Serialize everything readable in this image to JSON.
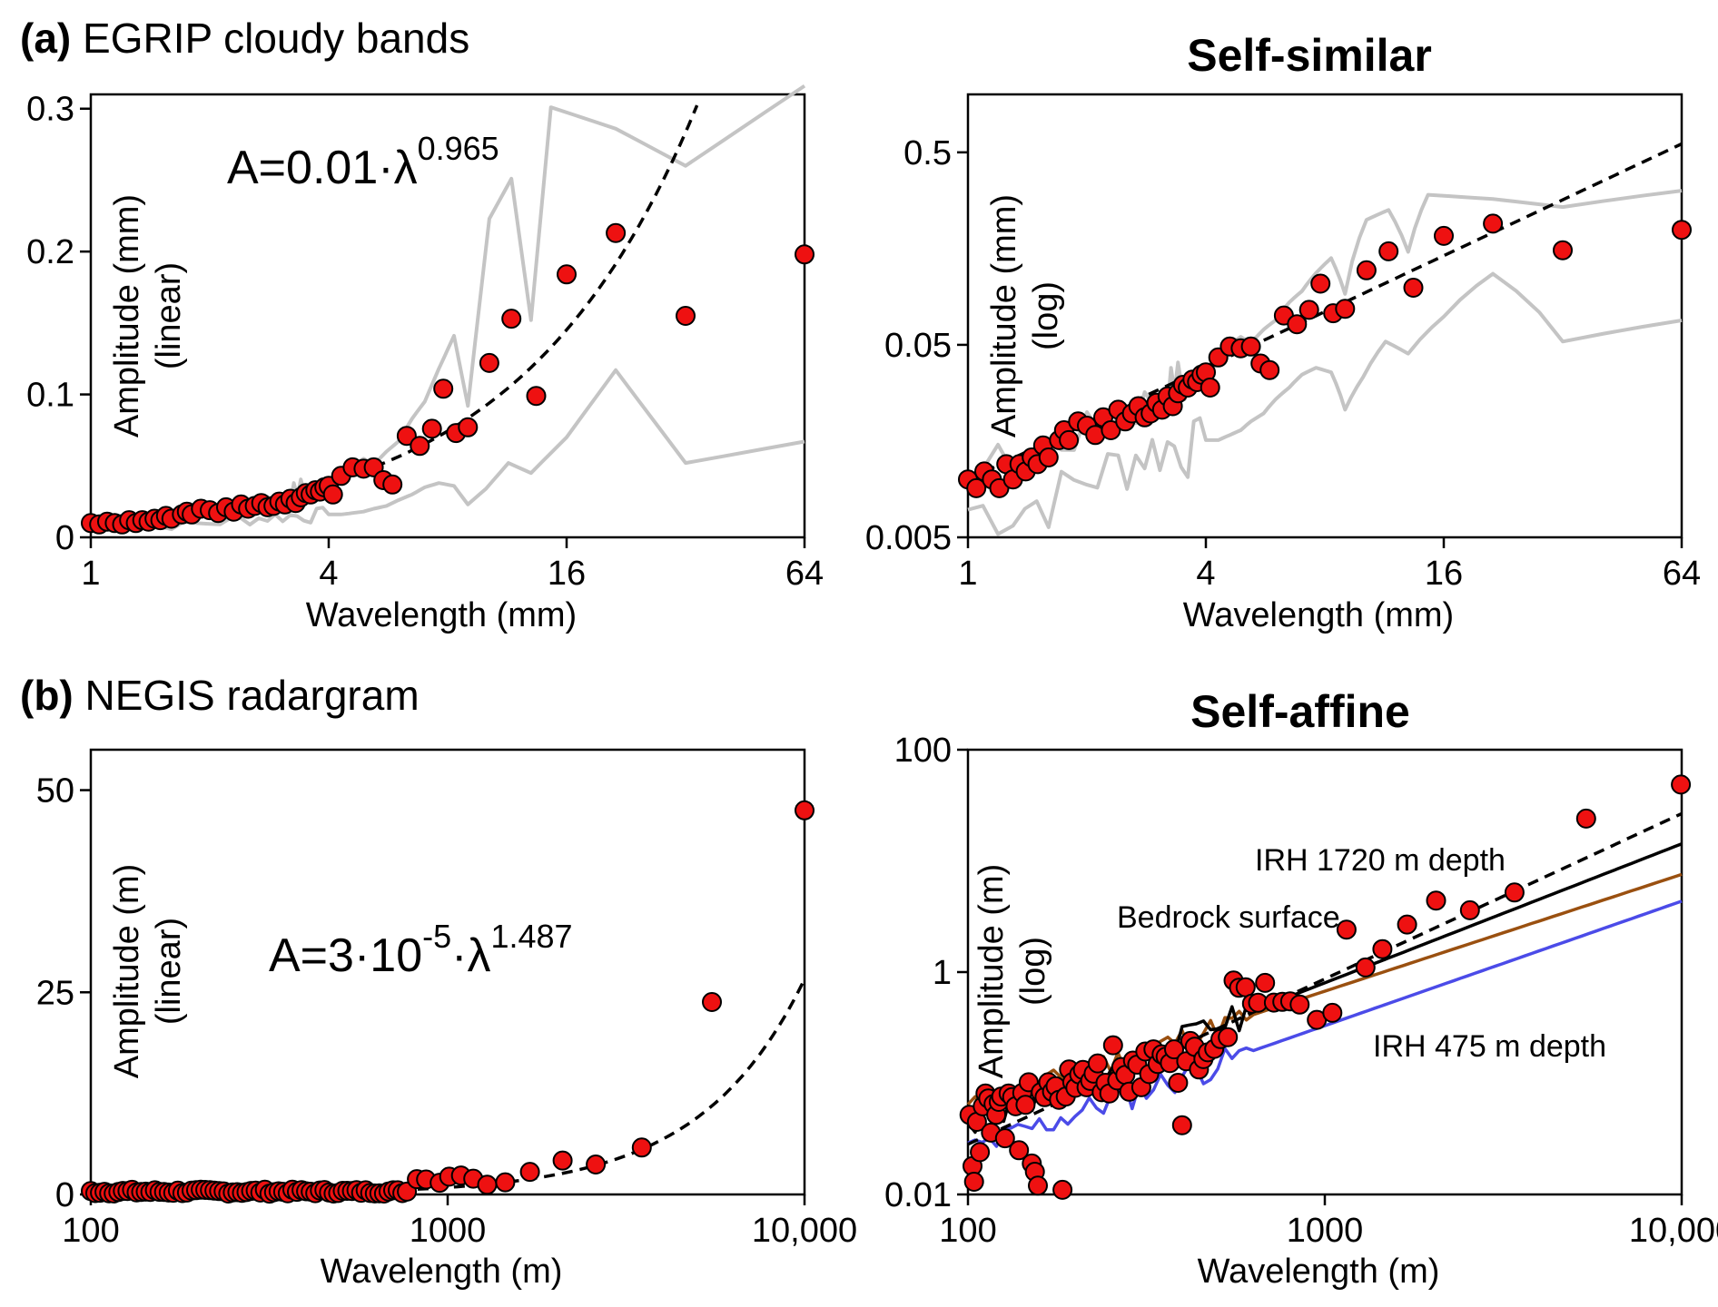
{
  "panel_labels": {
    "a_letter": "(a)",
    "a_text": "EGRIP cloudy bands",
    "b_letter": "(b)",
    "b_text": "NEGIS radargram"
  },
  "column_titles": {
    "top": "Self-similar",
    "bottom": "Self-affine"
  },
  "colors": {
    "marker_fill": "#ee1111",
    "marker_edge": "#000000",
    "envelope": "#c4c4c4",
    "fit": "#000000",
    "bedrock": "#9a5010",
    "irh475": "#4b4be8",
    "irh1720": "#000000"
  },
  "chart_data": [
    {
      "id": "a_linear",
      "type": "scatter",
      "xlabel": "Wavelength (mm)",
      "ylabel_line1": "Amplitude (mm)",
      "ylabel_line2": "(linear)",
      "xscale": "log2",
      "xlim": [
        1,
        64
      ],
      "ylim": [
        0,
        0.31
      ],
      "xticks": [
        {
          "v": 1,
          "label": "1"
        },
        {
          "v": 4,
          "label": "4"
        },
        {
          "v": 16,
          "label": "16"
        },
        {
          "v": 64,
          "label": "64"
        }
      ],
      "yticks": [
        {
          "v": 0,
          "label": "0"
        },
        {
          "v": 0.1,
          "label": "0.1"
        },
        {
          "v": 0.2,
          "label": "0.2"
        },
        {
          "v": 0.3,
          "label": "0.3"
        }
      ],
      "equation": {
        "base": "A=0.01·λ",
        "exp": "0.965"
      },
      "fit": {
        "a": 0.01,
        "b": 0.965,
        "xmax": 48
      }
    },
    {
      "id": "a_log",
      "type": "scatter",
      "xlabel": "Wavelength (mm)",
      "ylabel_line1": "Amplitude (mm)",
      "ylabel_line2": "(log)",
      "xscale": "log2",
      "yscale": "log",
      "xlim": [
        1,
        64
      ],
      "ylim": [
        0.005,
        1.0
      ],
      "xticks": [
        {
          "v": 1,
          "label": "1"
        },
        {
          "v": 4,
          "label": "4"
        },
        {
          "v": 16,
          "label": "16"
        },
        {
          "v": 64,
          "label": "64"
        }
      ],
      "yticks": [
        {
          "v": 0.005,
          "label": "0.005"
        },
        {
          "v": 0.05,
          "label": "0.05"
        },
        {
          "v": 0.5,
          "label": "0.5"
        }
      ],
      "fit": {
        "a": 0.01,
        "b": 0.965,
        "xmax": 64
      }
    },
    {
      "id": "b_linear",
      "type": "scatter",
      "xlabel": "Wavelength (m)",
      "ylabel_line1": "Amplitude (m)",
      "ylabel_line2": "(linear)",
      "xscale": "log10",
      "xlim": [
        100,
        10000
      ],
      "ylim": [
        0,
        55
      ],
      "xticks": [
        {
          "v": 100,
          "label": "100"
        },
        {
          "v": 1000,
          "label": "1000"
        },
        {
          "v": 10000,
          "label": "10,000"
        }
      ],
      "yticks": [
        {
          "v": 0,
          "label": "0"
        },
        {
          "v": 25,
          "label": "25"
        },
        {
          "v": 50,
          "label": "50"
        }
      ],
      "equation": {
        "base1": "A=3·10",
        "exp1": "-5",
        "base2": "·λ",
        "exp2": "1.487"
      },
      "fit": {
        "a": 3e-05,
        "b": 1.487,
        "xmax": 10000
      }
    },
    {
      "id": "b_log",
      "type": "scatter",
      "xlabel": "Wavelength (m)",
      "ylabel_line1": "Amplitude (m)",
      "ylabel_line2": "(log)",
      "xscale": "log10",
      "yscale": "log",
      "xlim": [
        100,
        10000
      ],
      "ylim": [
        0.01,
        100
      ],
      "xticks": [
        {
          "v": 100,
          "label": "100"
        },
        {
          "v": 1000,
          "label": "1000"
        },
        {
          "v": 10000,
          "label": "10,000"
        }
      ],
      "yticks": [
        {
          "v": 0.01,
          "label": "0.01"
        },
        {
          "v": 1,
          "label": "1"
        },
        {
          "v": 100,
          "label": "100"
        }
      ],
      "fit": {
        "a": 3e-05,
        "b": 1.487,
        "xmax": 10000
      },
      "series_labels": {
        "irh1720": "IRH 1720 m depth",
        "bedrock": "Bedrock surface",
        "irh475": "IRH 475 m depth"
      }
    }
  ],
  "series": {
    "a_points": [
      [
        1.0,
        0.01
      ],
      [
        1.05,
        0.009
      ],
      [
        1.1,
        0.011
      ],
      [
        1.15,
        0.01
      ],
      [
        1.2,
        0.009
      ],
      [
        1.25,
        0.012
      ],
      [
        1.3,
        0.01
      ],
      [
        1.35,
        0.012
      ],
      [
        1.4,
        0.011
      ],
      [
        1.45,
        0.013
      ],
      [
        1.5,
        0.012
      ],
      [
        1.55,
        0.015
      ],
      [
        1.6,
        0.013
      ],
      [
        1.7,
        0.016
      ],
      [
        1.75,
        0.018
      ],
      [
        1.8,
        0.016
      ],
      [
        1.9,
        0.02
      ],
      [
        2.0,
        0.019
      ],
      [
        2.1,
        0.017
      ],
      [
        2.2,
        0.021
      ],
      [
        2.3,
        0.018
      ],
      [
        2.4,
        0.023
      ],
      [
        2.5,
        0.02
      ],
      [
        2.6,
        0.022
      ],
      [
        2.7,
        0.024
      ],
      [
        2.8,
        0.021
      ],
      [
        2.9,
        0.022
      ],
      [
        3.0,
        0.025
      ],
      [
        3.1,
        0.023
      ],
      [
        3.2,
        0.027
      ],
      [
        3.3,
        0.024
      ],
      [
        3.4,
        0.028
      ],
      [
        3.5,
        0.031
      ],
      [
        3.6,
        0.03
      ],
      [
        3.7,
        0.033
      ],
      [
        3.8,
        0.032
      ],
      [
        3.9,
        0.035
      ],
      [
        4.0,
        0.036
      ],
      [
        4.1,
        0.03
      ],
      [
        4.3,
        0.043
      ],
      [
        4.6,
        0.049
      ],
      [
        4.9,
        0.048
      ],
      [
        5.2,
        0.049
      ],
      [
        5.5,
        0.04
      ],
      [
        5.8,
        0.037
      ],
      [
        6.3,
        0.071
      ],
      [
        6.8,
        0.064
      ],
      [
        7.3,
        0.076
      ],
      [
        7.8,
        0.104
      ],
      [
        8.4,
        0.073
      ],
      [
        9.0,
        0.077
      ],
      [
        10.2,
        0.122
      ],
      [
        11.6,
        0.153
      ],
      [
        13.4,
        0.099
      ],
      [
        16.0,
        0.184
      ],
      [
        21.3,
        0.213
      ],
      [
        32.0,
        0.155
      ],
      [
        64.0,
        0.198
      ]
    ],
    "a_lower": [
      [
        1.0,
        0.007
      ],
      [
        1.3,
        0.007
      ],
      [
        1.6,
        0.008
      ],
      [
        2.0,
        0.01
      ],
      [
        2.4,
        0.012
      ],
      [
        2.8,
        0.014
      ],
      [
        3.2,
        0.015
      ],
      [
        3.6,
        0.015
      ],
      [
        4.0,
        0.016
      ],
      [
        4.3,
        0.016
      ],
      [
        4.6,
        0.017
      ],
      [
        4.9,
        0.018
      ],
      [
        5.2,
        0.02
      ],
      [
        5.6,
        0.022
      ],
      [
        6.0,
        0.026
      ],
      [
        6.5,
        0.03
      ],
      [
        7.0,
        0.035
      ],
      [
        7.6,
        0.038
      ],
      [
        8.3,
        0.036
      ],
      [
        9.0,
        0.023
      ],
      [
        10.0,
        0.034
      ],
      [
        11.4,
        0.052
      ],
      [
        13.0,
        0.045
      ],
      [
        16.0,
        0.07
      ],
      [
        21.3,
        0.117
      ],
      [
        32.0,
        0.052
      ],
      [
        64.0,
        0.067
      ]
    ],
    "a_upper": [
      [
        1.0,
        0.011
      ],
      [
        1.3,
        0.013
      ],
      [
        1.6,
        0.015
      ],
      [
        2.0,
        0.018
      ],
      [
        2.4,
        0.021
      ],
      [
        2.8,
        0.025
      ],
      [
        3.2,
        0.03
      ],
      [
        3.4,
        0.034
      ],
      [
        3.6,
        0.028
      ],
      [
        4.0,
        0.036
      ],
      [
        4.3,
        0.04
      ],
      [
        4.6,
        0.05
      ],
      [
        4.9,
        0.055
      ],
      [
        5.2,
        0.051
      ],
      [
        5.6,
        0.06
      ],
      [
        6.0,
        0.067
      ],
      [
        6.5,
        0.083
      ],
      [
        7.0,
        0.095
      ],
      [
        7.6,
        0.118
      ],
      [
        8.3,
        0.141
      ],
      [
        9.0,
        0.092
      ],
      [
        10.2,
        0.223
      ],
      [
        11.6,
        0.251
      ],
      [
        13.0,
        0.152
      ],
      [
        14.6,
        0.301
      ],
      [
        21.3,
        0.286
      ],
      [
        32.0,
        0.26
      ],
      [
        64.0,
        0.316
      ]
    ],
    "b_points": [
      [
        101,
        0.24
      ],
      [
        104,
        0.13
      ],
      [
        106,
        0.22
      ],
      [
        108,
        0.07
      ],
      [
        111,
        0.22
      ],
      [
        113,
        0.34
      ],
      [
        116,
        0.27
      ],
      [
        119,
        0.4
      ],
      [
        121,
        0.22
      ],
      [
        124,
        0.16
      ],
      [
        126,
        0.34
      ],
      [
        129,
        0.32
      ],
      [
        132,
        0.12
      ],
      [
        136,
        0.2
      ],
      [
        139,
        0.09
      ],
      [
        142,
        0.2
      ],
      [
        146,
        0.43
      ],
      [
        150,
        0.06
      ],
      [
        153,
        0.04
      ],
      [
        157,
        0.13
      ],
      [
        161,
        0.22
      ],
      [
        165,
        0.3
      ],
      [
        169,
        0.26
      ],
      [
        174,
        0.4
      ],
      [
        178,
        0.38
      ],
      [
        183,
        0.27
      ],
      [
        187,
        0.02
      ],
      [
        192,
        0.3
      ],
      [
        197,
        0.34
      ],
      [
        202,
        0.23
      ],
      [
        207,
        0.38
      ],
      [
        212,
        0.19
      ],
      [
        218,
        0.07
      ],
      [
        224,
        0.26
      ],
      [
        229,
        0.3
      ],
      [
        235,
        0.45
      ],
      [
        241,
        0.17
      ],
      [
        248,
        0.33
      ],
      [
        254,
        0.6
      ],
      [
        261,
        0.35
      ],
      [
        268,
        0.45
      ],
      [
        275,
        0.09
      ],
      [
        282,
        0.23
      ],
      [
        289,
        0.36
      ],
      [
        297,
        0.22
      ],
      [
        305,
        0.46
      ],
      [
        313,
        0.15
      ],
      [
        321,
        0.33
      ],
      [
        330,
        0.37
      ],
      [
        339,
        0.4
      ],
      [
        348,
        0.35
      ],
      [
        357,
        0.3
      ],
      [
        366,
        0.48
      ],
      [
        376,
        0.57
      ],
      [
        386,
        0.42
      ],
      [
        396,
        0.18
      ],
      [
        407,
        0.3
      ],
      [
        418,
        0.71
      ],
      [
        430,
        0.65
      ],
      [
        442,
        0.54
      ],
      [
        455,
        0.5
      ],
      [
        470,
        0.48
      ],
      [
        490,
        0.68
      ],
      [
        510,
        0.85
      ],
      [
        535,
        0.57
      ],
      [
        560,
        1.1
      ],
      [
        590,
        1.3
      ],
      [
        625,
        0.9
      ],
      [
        650,
        1.25
      ],
      [
        700,
        1.35
      ],
      [
        760,
        1.6
      ],
      [
        820,
        1.9
      ],
      [
        870,
        1.85
      ],
      [
        950,
        1.45
      ],
      [
        1010,
        2.2
      ],
      [
        1090,
        2.35
      ],
      [
        1180,
        1.95
      ],
      [
        1290,
        1.2
      ],
      [
        1450,
        1.5
      ],
      [
        1700,
        2.8
      ],
      [
        2100,
        4.2
      ],
      [
        2600,
        3.7
      ],
      [
        3500,
        5.8
      ],
      [
        5500,
        23.8
      ],
      [
        10000,
        47.5
      ]
    ],
    "b_log_points": [
      [
        101,
        0.052
      ],
      [
        103,
        0.018
      ],
      [
        104,
        0.013
      ],
      [
        106,
        0.045
      ],
      [
        108,
        0.024
      ],
      [
        110,
        0.062
      ],
      [
        112,
        0.081
      ],
      [
        114,
        0.073
      ],
      [
        116,
        0.036
      ],
      [
        118,
        0.065
      ],
      [
        120,
        0.052
      ],
      [
        122,
        0.068
      ],
      [
        124,
        0.076
      ],
      [
        127,
        0.032
      ],
      [
        130,
        0.081
      ],
      [
        133,
        0.075
      ],
      [
        136,
        0.062
      ],
      [
        139,
        0.025
      ],
      [
        142,
        0.082
      ],
      [
        145,
        0.064
      ],
      [
        148,
        0.102
      ],
      [
        151,
        0.019
      ],
      [
        154,
        0.016
      ],
      [
        157,
        0.012
      ],
      [
        160,
        0.083
      ],
      [
        164,
        0.075
      ],
      [
        168,
        0.102
      ],
      [
        172,
        0.084
      ],
      [
        176,
        0.094
      ],
      [
        180,
        0.071
      ],
      [
        184,
        0.011
      ],
      [
        188,
        0.076
      ],
      [
        192,
        0.133
      ],
      [
        196,
        0.102
      ],
      [
        200,
        0.091
      ],
      [
        205,
        0.12
      ],
      [
        210,
        0.132
      ],
      [
        215,
        0.092
      ],
      [
        220,
        0.105
      ],
      [
        225,
        0.122
      ],
      [
        231,
        0.151
      ],
      [
        237,
        0.083
      ],
      [
        243,
        0.101
      ],
      [
        249,
        0.081
      ],
      [
        255,
        0.22
      ],
      [
        262,
        0.106
      ],
      [
        269,
        0.14
      ],
      [
        276,
        0.119
      ],
      [
        283,
        0.084
      ],
      [
        290,
        0.16
      ],
      [
        298,
        0.147
      ],
      [
        306,
        0.092
      ],
      [
        314,
        0.193
      ],
      [
        322,
        0.121
      ],
      [
        331,
        0.202
      ],
      [
        340,
        0.149
      ],
      [
        349,
        0.182
      ],
      [
        358,
        0.173
      ],
      [
        368,
        0.152
      ],
      [
        378,
        0.202
      ],
      [
        388,
        0.101
      ],
      [
        398,
        0.042
      ],
      [
        409,
        0.158
      ],
      [
        420,
        0.24
      ],
      [
        432,
        0.213
      ],
      [
        444,
        0.133
      ],
      [
        457,
        0.165
      ],
      [
        470,
        0.19
      ],
      [
        490,
        0.204
      ],
      [
        510,
        0.25
      ],
      [
        535,
        0.26
      ],
      [
        555,
        0.84
      ],
      [
        575,
        0.722
      ],
      [
        600,
        0.73
      ],
      [
        625,
        0.521
      ],
      [
        650,
        0.531
      ],
      [
        680,
        0.8
      ],
      [
        720,
        0.532
      ],
      [
        760,
        0.54
      ],
      [
        800,
        0.545
      ],
      [
        850,
        0.51
      ],
      [
        950,
        0.372
      ],
      [
        1050,
        0.43
      ],
      [
        1150,
        2.41
      ],
      [
        1300,
        1.1
      ],
      [
        1450,
        1.61
      ],
      [
        1700,
        2.68
      ],
      [
        2050,
        4.4
      ],
      [
        2550,
        3.6
      ],
      [
        3400,
        5.2
      ],
      [
        5400,
        24.0
      ],
      [
        9950,
        48.6
      ]
    ]
  }
}
